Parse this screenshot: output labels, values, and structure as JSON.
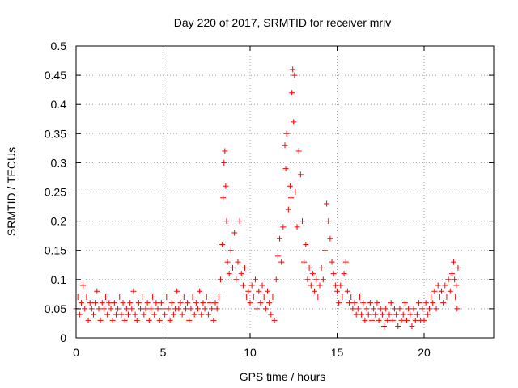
{
  "chart_data": {
    "type": "scatter",
    "title": "Day 220 of 2017, SRMTID for receiver mriv",
    "xlabel": "GPS time / hours",
    "ylabel": "SRMTID / TECUs",
    "xlim": [
      0,
      24
    ],
    "ylim": [
      0,
      0.5
    ],
    "xticks": [
      {
        "value": 0,
        "label": "0"
      },
      {
        "value": 5,
        "label": "5"
      },
      {
        "value": 10,
        "label": "10"
      },
      {
        "value": 15,
        "label": "15"
      },
      {
        "value": 20,
        "label": "20"
      }
    ],
    "yticks": [
      {
        "value": 0,
        "label": "0"
      },
      {
        "value": 0.05,
        "label": "0.05"
      },
      {
        "value": 0.1,
        "label": "0.1"
      },
      {
        "value": 0.15,
        "label": "0.15"
      },
      {
        "value": 0.2,
        "label": "0.2"
      },
      {
        "value": 0.25,
        "label": "0.25"
      },
      {
        "value": 0.3,
        "label": "0.3"
      },
      {
        "value": 0.35,
        "label": "0.35"
      },
      {
        "value": 0.4,
        "label": "0.4"
      },
      {
        "value": 0.45,
        "label": "0.45"
      },
      {
        "value": 0.5,
        "label": "0.5"
      }
    ],
    "grid": true,
    "marker": "plus",
    "series": [
      {
        "name": "SRMTID",
        "color": "#ff0000",
        "points": [
          [
            0.0,
            0.05
          ],
          [
            0.1,
            0.07
          ],
          [
            0.2,
            0.04
          ],
          [
            0.3,
            0.06
          ],
          [
            0.4,
            0.09
          ],
          [
            0.5,
            0.05
          ],
          [
            0.6,
            0.07
          ],
          [
            0.7,
            0.03
          ],
          [
            0.8,
            0.06
          ],
          [
            0.9,
            0.05
          ],
          [
            1.0,
            0.04
          ],
          [
            1.1,
            0.06
          ],
          [
            1.2,
            0.08
          ],
          [
            1.3,
            0.05
          ],
          [
            1.4,
            0.03
          ],
          [
            1.5,
            0.06
          ],
          [
            1.6,
            0.05
          ],
          [
            1.7,
            0.07
          ],
          [
            1.8,
            0.04
          ],
          [
            1.9,
            0.06
          ],
          [
            2.0,
            0.05
          ],
          [
            2.1,
            0.03
          ],
          [
            2.2,
            0.06
          ],
          [
            2.3,
            0.04
          ],
          [
            2.4,
            0.05
          ],
          [
            2.5,
            0.07
          ],
          [
            2.6,
            0.04
          ],
          [
            2.7,
            0.06
          ],
          [
            2.8,
            0.03
          ],
          [
            2.9,
            0.05
          ],
          [
            3.0,
            0.04
          ],
          [
            3.1,
            0.06
          ],
          [
            3.2,
            0.05
          ],
          [
            3.3,
            0.08
          ],
          [
            3.4,
            0.04
          ],
          [
            3.5,
            0.03
          ],
          [
            3.6,
            0.06
          ],
          [
            3.7,
            0.05
          ],
          [
            3.8,
            0.07
          ],
          [
            3.9,
            0.04
          ],
          [
            4.0,
            0.05
          ],
          [
            4.1,
            0.06
          ],
          [
            4.2,
            0.03
          ],
          [
            4.3,
            0.05
          ],
          [
            4.4,
            0.07
          ],
          [
            4.5,
            0.04
          ],
          [
            4.6,
            0.06
          ],
          [
            4.7,
            0.05
          ],
          [
            4.8,
            0.03
          ],
          [
            4.9,
            0.06
          ],
          [
            5.0,
            0.05
          ],
          [
            5.1,
            0.04
          ],
          [
            5.2,
            0.07
          ],
          [
            5.3,
            0.05
          ],
          [
            5.4,
            0.03
          ],
          [
            5.5,
            0.06
          ],
          [
            5.6,
            0.04
          ],
          [
            5.7,
            0.05
          ],
          [
            5.8,
            0.08
          ],
          [
            5.9,
            0.05
          ],
          [
            6.0,
            0.06
          ],
          [
            6.1,
            0.04
          ],
          [
            6.2,
            0.07
          ],
          [
            6.3,
            0.05
          ],
          [
            6.4,
            0.06
          ],
          [
            6.5,
            0.03
          ],
          [
            6.6,
            0.05
          ],
          [
            6.7,
            0.07
          ],
          [
            6.8,
            0.04
          ],
          [
            6.9,
            0.06
          ],
          [
            7.0,
            0.05
          ],
          [
            7.1,
            0.08
          ],
          [
            7.2,
            0.04
          ],
          [
            7.3,
            0.06
          ],
          [
            7.4,
            0.05
          ],
          [
            7.5,
            0.07
          ],
          [
            7.6,
            0.04
          ],
          [
            7.7,
            0.06
          ],
          [
            7.8,
            0.05
          ],
          [
            7.9,
            0.03
          ],
          [
            8.0,
            0.06
          ],
          [
            8.1,
            0.05
          ],
          [
            8.2,
            0.07
          ],
          [
            8.3,
            0.1
          ],
          [
            8.4,
            0.16
          ],
          [
            8.45,
            0.24
          ],
          [
            8.5,
            0.3
          ],
          [
            8.55,
            0.32
          ],
          [
            8.6,
            0.26
          ],
          [
            8.65,
            0.2
          ],
          [
            8.7,
            0.13
          ],
          [
            8.8,
            0.11
          ],
          [
            8.9,
            0.15
          ],
          [
            9.0,
            0.12
          ],
          [
            9.1,
            0.18
          ],
          [
            9.2,
            0.1
          ],
          [
            9.3,
            0.13
          ],
          [
            9.4,
            0.2
          ],
          [
            9.5,
            0.11
          ],
          [
            9.6,
            0.09
          ],
          [
            9.7,
            0.12
          ],
          [
            9.8,
            0.07
          ],
          [
            9.9,
            0.08
          ],
          [
            10.0,
            0.06
          ],
          [
            10.1,
            0.09
          ],
          [
            10.2,
            0.07
          ],
          [
            10.3,
            0.1
          ],
          [
            10.4,
            0.05
          ],
          [
            10.5,
            0.08
          ],
          [
            10.6,
            0.06
          ],
          [
            10.7,
            0.09
          ],
          [
            10.8,
            0.07
          ],
          [
            10.9,
            0.05
          ],
          [
            11.0,
            0.08
          ],
          [
            11.1,
            0.06
          ],
          [
            11.2,
            0.04
          ],
          [
            11.3,
            0.07
          ],
          [
            11.4,
            0.03
          ],
          [
            11.5,
            0.1
          ],
          [
            11.6,
            0.14
          ],
          [
            11.7,
            0.17
          ],
          [
            11.8,
            0.13
          ],
          [
            11.9,
            0.19
          ],
          [
            12.0,
            0.33
          ],
          [
            12.05,
            0.29
          ],
          [
            12.1,
            0.35
          ],
          [
            12.2,
            0.22
          ],
          [
            12.3,
            0.26
          ],
          [
            12.35,
            0.24
          ],
          [
            12.4,
            0.42
          ],
          [
            12.45,
            0.46
          ],
          [
            12.5,
            0.37
          ],
          [
            12.55,
            0.45
          ],
          [
            12.6,
            0.25
          ],
          [
            12.7,
            0.19
          ],
          [
            12.8,
            0.32
          ],
          [
            12.9,
            0.28
          ],
          [
            13.0,
            0.2
          ],
          [
            13.1,
            0.13
          ],
          [
            13.2,
            0.16
          ],
          [
            13.3,
            0.1
          ],
          [
            13.4,
            0.12
          ],
          [
            13.5,
            0.09
          ],
          [
            13.6,
            0.11
          ],
          [
            13.7,
            0.08
          ],
          [
            13.8,
            0.1
          ],
          [
            13.9,
            0.07
          ],
          [
            14.0,
            0.09
          ],
          [
            14.1,
            0.12
          ],
          [
            14.2,
            0.1
          ],
          [
            14.3,
            0.15
          ],
          [
            14.4,
            0.23
          ],
          [
            14.5,
            0.2
          ],
          [
            14.6,
            0.17
          ],
          [
            14.7,
            0.13
          ],
          [
            14.8,
            0.11
          ],
          [
            14.9,
            0.09
          ],
          [
            15.0,
            0.08
          ],
          [
            15.1,
            0.06
          ],
          [
            15.2,
            0.09
          ],
          [
            15.3,
            0.07
          ],
          [
            15.4,
            0.11
          ],
          [
            15.5,
            0.13
          ],
          [
            15.6,
            0.08
          ],
          [
            15.7,
            0.06
          ],
          [
            15.8,
            0.07
          ],
          [
            15.9,
            0.05
          ],
          [
            16.0,
            0.06
          ],
          [
            16.1,
            0.04
          ],
          [
            16.2,
            0.05
          ],
          [
            16.3,
            0.07
          ],
          [
            16.4,
            0.04
          ],
          [
            16.5,
            0.06
          ],
          [
            16.6,
            0.03
          ],
          [
            16.7,
            0.05
          ],
          [
            16.8,
            0.04
          ],
          [
            16.9,
            0.06
          ],
          [
            17.0,
            0.03
          ],
          [
            17.1,
            0.05
          ],
          [
            17.2,
            0.04
          ],
          [
            17.3,
            0.06
          ],
          [
            17.4,
            0.03
          ],
          [
            17.5,
            0.05
          ],
          [
            17.6,
            0.04
          ],
          [
            17.7,
            0.02
          ],
          [
            17.8,
            0.05
          ],
          [
            17.9,
            0.03
          ],
          [
            18.0,
            0.04
          ],
          [
            18.1,
            0.06
          ],
          [
            18.2,
            0.03
          ],
          [
            18.3,
            0.05
          ],
          [
            18.4,
            0.04
          ],
          [
            18.5,
            0.02
          ],
          [
            18.6,
            0.05
          ],
          [
            18.7,
            0.03
          ],
          [
            18.8,
            0.04
          ],
          [
            18.9,
            0.06
          ],
          [
            19.0,
            0.03
          ],
          [
            19.1,
            0.05
          ],
          [
            19.2,
            0.04
          ],
          [
            19.3,
            0.02
          ],
          [
            19.4,
            0.05
          ],
          [
            19.5,
            0.03
          ],
          [
            19.6,
            0.04
          ],
          [
            19.7,
            0.06
          ],
          [
            19.8,
            0.03
          ],
          [
            19.9,
            0.05
          ],
          [
            20.0,
            0.03
          ],
          [
            20.1,
            0.06
          ],
          [
            20.2,
            0.04
          ],
          [
            20.3,
            0.05
          ],
          [
            20.4,
            0.07
          ],
          [
            20.5,
            0.06
          ],
          [
            20.6,
            0.08
          ],
          [
            20.7,
            0.05
          ],
          [
            20.8,
            0.09
          ],
          [
            20.9,
            0.07
          ],
          [
            21.0,
            0.08
          ],
          [
            21.1,
            0.06
          ],
          [
            21.2,
            0.09
          ],
          [
            21.3,
            0.07
          ],
          [
            21.4,
            0.1
          ],
          [
            21.5,
            0.08
          ],
          [
            21.6,
            0.11
          ],
          [
            21.7,
            0.13
          ],
          [
            21.75,
            0.1
          ],
          [
            21.8,
            0.07
          ],
          [
            21.85,
            0.09
          ],
          [
            21.9,
            0.05
          ],
          [
            21.95,
            0.12
          ]
        ]
      }
    ]
  }
}
